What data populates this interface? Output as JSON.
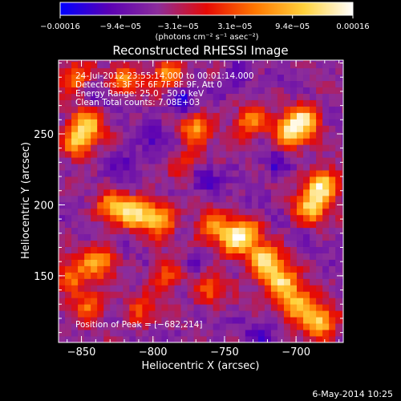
{
  "chart_data": {
    "type": "heatmap",
    "title": "Reconstructed RHESSI Image",
    "xlabel": "Heliocentric X (arcsec)",
    "ylabel": "Heliocentric Y (arcsec)",
    "xlim": [
      -866,
      -667
    ],
    "ylim": [
      103,
      302
    ],
    "x_ticks": [
      -850,
      -800,
      -750,
      -700
    ],
    "y_ticks": [
      150,
      200,
      250
    ],
    "x_tick_labels": [
      "−850",
      "−800",
      "−750",
      "−700"
    ],
    "y_tick_labels": [
      "150",
      "200",
      "250"
    ],
    "colorbar": {
      "min": -0.00016,
      "max": 0.00016,
      "tick_labels": [
        "−0.00016",
        "−9.4e−05",
        "−3.1e−05",
        "3.1e−05",
        "9.4e−05",
        "0.00016"
      ],
      "tick_values": [
        -0.00016,
        -9.4e-05,
        -3.1e-05,
        3.1e-05,
        9.4e-05,
        0.00016
      ],
      "unit_label": "(photons cm⁻² s⁻¹ asec⁻²)",
      "colors": [
        "#0000ff",
        "#5a00b4",
        "#8c2d9b",
        "#e60a05",
        "#ff7800",
        "#ffd23c",
        "#ffffff"
      ]
    },
    "annotations": [
      "24-Jul-2012 23:55:14.000 to 00:01:14.000",
      "Detectors: 3F 5F 6F 7F 8F 9F, Att 0",
      "Energy Range: 25.0 - 50.0 keV",
      "Clean     Total counts: 7.08E+03"
    ],
    "peak_label": "Position of Peak = [−682,214]",
    "hot_spots": [
      {
        "x": -722,
        "y": 160,
        "v": 1.0
      },
      {
        "x": -710,
        "y": 145,
        "v": 0.9
      },
      {
        "x": -698,
        "y": 130,
        "v": 0.85
      },
      {
        "x": -683,
        "y": 118,
        "v": 0.9
      },
      {
        "x": -735,
        "y": 180,
        "v": 0.7
      },
      {
        "x": -682,
        "y": 214,
        "v": 1.0
      },
      {
        "x": -690,
        "y": 198,
        "v": 0.8
      },
      {
        "x": -695,
        "y": 260,
        "v": 0.9
      },
      {
        "x": -705,
        "y": 250,
        "v": 0.8
      },
      {
        "x": -732,
        "y": 258,
        "v": 0.7
      },
      {
        "x": -745,
        "y": 175,
        "v": 0.75
      },
      {
        "x": -760,
        "y": 185,
        "v": 0.6
      },
      {
        "x": -812,
        "y": 195,
        "v": 0.85
      },
      {
        "x": -795,
        "y": 190,
        "v": 0.8
      },
      {
        "x": -828,
        "y": 198,
        "v": 0.7
      },
      {
        "x": -853,
        "y": 245,
        "v": 0.8
      },
      {
        "x": -845,
        "y": 258,
        "v": 0.7
      },
      {
        "x": -855,
        "y": 290,
        "v": 0.6
      },
      {
        "x": -790,
        "y": 292,
        "v": 0.7
      },
      {
        "x": -820,
        "y": 288,
        "v": 0.6
      },
      {
        "x": -770,
        "y": 255,
        "v": 0.65
      },
      {
        "x": -838,
        "y": 160,
        "v": 0.7
      },
      {
        "x": -857,
        "y": 150,
        "v": 0.6
      },
      {
        "x": -845,
        "y": 130,
        "v": 0.55
      },
      {
        "x": -790,
        "y": 150,
        "v": 0.5
      },
      {
        "x": -760,
        "y": 140,
        "v": 0.5
      },
      {
        "x": -808,
        "y": 125,
        "v": 0.45
      },
      {
        "x": -775,
        "y": 230,
        "v": 0.45
      }
    ],
    "cold_spots": [
      {
        "x": -780,
        "y": 272,
        "v": 1.0
      },
      {
        "x": -765,
        "y": 218,
        "v": 0.8
      },
      {
        "x": -800,
        "y": 245,
        "v": 0.6
      },
      {
        "x": -770,
        "y": 160,
        "v": 0.5
      },
      {
        "x": -820,
        "y": 230,
        "v": 0.5
      },
      {
        "x": -715,
        "y": 230,
        "v": 0.6
      },
      {
        "x": -745,
        "y": 288,
        "v": 0.5
      },
      {
        "x": -835,
        "y": 275,
        "v": 0.4
      },
      {
        "x": -725,
        "y": 110,
        "v": 0.5
      }
    ]
  },
  "footer": {
    "date": "6-May-2014 10:25"
  }
}
